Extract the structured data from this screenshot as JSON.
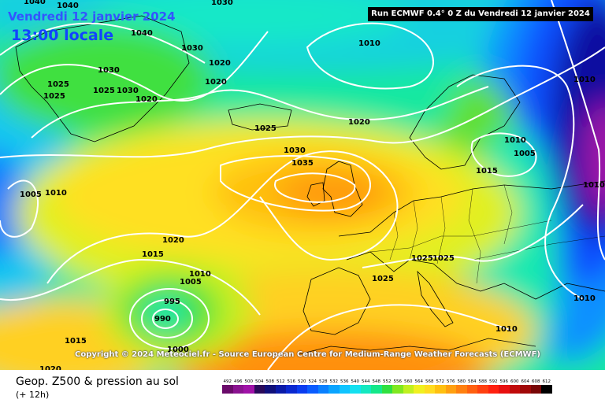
{
  "header": {
    "date": "Vendredi 12 janvier 2024",
    "local_time": "13:00 locale",
    "run_info": "Run ECMWF 0.4° 0 Z du Vendredi 12 janvier 2024"
  },
  "copyright": "Copyright © 2024 Meteociel.fr - Source European Centre for Medium-Range Weather Forecasts (ECMWF)",
  "footer": {
    "title": "Geop. Z500 & pression au sol",
    "subtitle": "(+ 12h)"
  },
  "legend": [
    {
      "label": "492",
      "color": "#6a0a6a"
    },
    {
      "label": "496",
      "color": "#8a1390"
    },
    {
      "label": "500",
      "color": "#a012a8"
    },
    {
      "label": "504",
      "color": "#2a0a5a"
    },
    {
      "label": "508",
      "color": "#10107a"
    },
    {
      "label": "512",
      "color": "#0a1aa8"
    },
    {
      "label": "516",
      "color": "#0a28d0"
    },
    {
      "label": "520",
      "color": "#0a3cf0"
    },
    {
      "label": "524",
      "color": "#0a5cff"
    },
    {
      "label": "528",
      "color": "#0a80ff"
    },
    {
      "label": "532",
      "color": "#0aa4ff"
    },
    {
      "label": "536",
      "color": "#10c4ff"
    },
    {
      "label": "540",
      "color": "#14e0f0"
    },
    {
      "label": "544",
      "color": "#14e8c0"
    },
    {
      "label": "548",
      "color": "#14e88a"
    },
    {
      "label": "552",
      "color": "#30e040"
    },
    {
      "label": "556",
      "color": "#80e820"
    },
    {
      "label": "560",
      "color": "#c0f020"
    },
    {
      "label": "564",
      "color": "#f0f020"
    },
    {
      "label": "568",
      "color": "#ffdc20"
    },
    {
      "label": "572",
      "color": "#ffc010"
    },
    {
      "label": "576",
      "color": "#ffa010"
    },
    {
      "label": "580",
      "color": "#ff8010"
    },
    {
      "label": "584",
      "color": "#ff6010"
    },
    {
      "label": "588",
      "color": "#ff4010"
    },
    {
      "label": "592",
      "color": "#ff2010"
    },
    {
      "label": "596",
      "color": "#e81010"
    },
    {
      "label": "600",
      "color": "#c00a0a"
    },
    {
      "label": "604",
      "color": "#a00808"
    },
    {
      "label": "608",
      "color": "#780606"
    },
    {
      "label": "612",
      "color": "#000000"
    }
  ],
  "isobar_labels": [
    "1040",
    "1040",
    "1030",
    "1040",
    "1030",
    "1020",
    "1030",
    "1020",
    "1010",
    "1025",
    "1025",
    "1025",
    "1030",
    "1020",
    "1025",
    "1020",
    "1010",
    "1030",
    "1035",
    "1005",
    "1010",
    "1010",
    "1005",
    "1015",
    "1010",
    "1020",
    "1015",
    "1010",
    "1005",
    "995",
    "990",
    "1000",
    "1015",
    "1020",
    "1025",
    "1025",
    "1025",
    "1010",
    "1010"
  ],
  "colors": {
    "high_pressure": "#ff8a10",
    "low_pressure": "#1010a0",
    "isobar": "#ffffff",
    "border": "#000000"
  }
}
